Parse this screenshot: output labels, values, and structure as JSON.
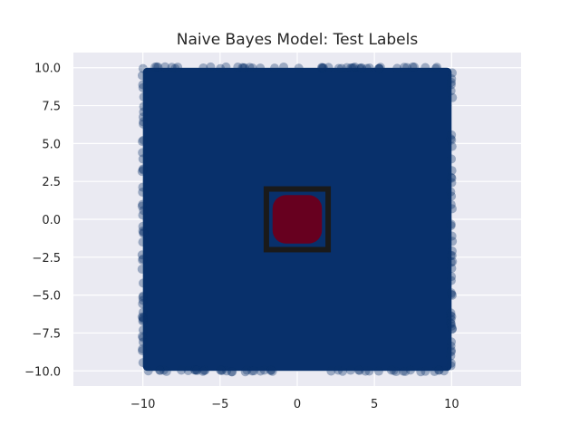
{
  "chart_data": {
    "type": "scatter",
    "title": "Naive Bayes Model: Test Labels",
    "xlabel": "",
    "ylabel": "",
    "xlim": [
      -14.5,
      14.5
    ],
    "ylim": [
      -11.0,
      11.0
    ],
    "x_ticks": [
      -10,
      -5,
      0,
      5,
      10
    ],
    "x_tick_labels": [
      "−10",
      "−5",
      "0",
      "5",
      "10"
    ],
    "y_ticks": [
      10.0,
      7.5,
      5.0,
      2.5,
      0.0,
      -2.5,
      -5.0,
      -7.5,
      -10.0
    ],
    "y_tick_labels": [
      "10.0",
      "7.5",
      "5.0",
      "2.5",
      "0.0",
      "−2.5",
      "−5.0",
      "−7.5",
      "−10.0"
    ],
    "grid": true,
    "background_color": "#eaeaf2",
    "grid_color": "#ffffff",
    "series": [
      {
        "label_class": 0,
        "color": "#08306b",
        "region": "square",
        "x_range": [
          -10,
          10
        ],
        "y_range": [
          -10,
          10
        ]
      },
      {
        "label_class": 1,
        "color": "#67001f",
        "region": "disc",
        "center": [
          0,
          0
        ],
        "radius": 1.6
      }
    ],
    "boundary_box": {
      "color": "#1a1a1a",
      "x_range": [
        -2,
        2
      ],
      "y_range": [
        -2,
        2
      ]
    }
  }
}
